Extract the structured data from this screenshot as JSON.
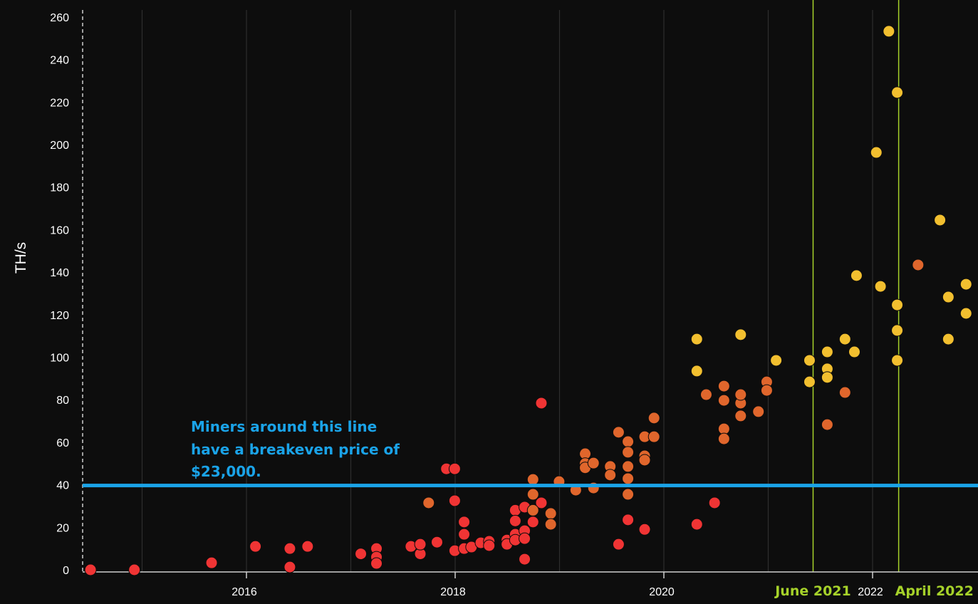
{
  "chart_data": {
    "type": "scatter",
    "title": "",
    "xlabel": "",
    "ylabel": "TH/s",
    "xlim": [
      2014.42,
      2023.0
    ],
    "ylim": [
      0,
      260
    ],
    "yticks": [
      0,
      20,
      40,
      60,
      80,
      100,
      120,
      140,
      160,
      180,
      200,
      220,
      240,
      260
    ],
    "xticks": [
      {
        "value": 2016,
        "label": "2016"
      },
      {
        "value": 2018,
        "label": "2018"
      },
      {
        "value": 2020,
        "label": "2020"
      },
      {
        "value": 2022,
        "label": "2022"
      }
    ],
    "grid": "vertical",
    "reference_line": {
      "y": 40,
      "color": "#1aa3e8",
      "annotation": [
        "Miners around this line",
        "have a breakeven price of",
        "$23,000."
      ]
    },
    "events": [
      {
        "x": 2021.43,
        "label": "June 2021",
        "color": "#a6d22a"
      },
      {
        "x": 2022.25,
        "label": "April 2022",
        "color": "#a6d22a"
      }
    ],
    "series": [
      {
        "name": "red",
        "color": "#f03434",
        "points": [
          [
            2014.54,
            0
          ],
          [
            2014.96,
            0
          ],
          [
            2015.7,
            3.3
          ],
          [
            2016.12,
            11
          ],
          [
            2016.45,
            1.3
          ],
          [
            2016.45,
            10
          ],
          [
            2016.62,
            11
          ],
          [
            2017.13,
            7.5
          ],
          [
            2017.28,
            10
          ],
          [
            2017.28,
            6
          ],
          [
            2017.28,
            3
          ],
          [
            2017.61,
            11
          ],
          [
            2017.7,
            7.5
          ],
          [
            2017.7,
            12
          ],
          [
            2017.86,
            13
          ],
          [
            2017.95,
            47.5
          ],
          [
            2018.03,
            47.5
          ],
          [
            2018.03,
            32.5
          ],
          [
            2018.03,
            9
          ],
          [
            2018.12,
            22.5
          ],
          [
            2018.12,
            16.7
          ],
          [
            2018.12,
            10
          ],
          [
            2018.19,
            10.7
          ],
          [
            2018.28,
            12.7
          ],
          [
            2018.36,
            13.4
          ],
          [
            2018.36,
            11.4
          ],
          [
            2018.53,
            14
          ],
          [
            2018.53,
            12
          ],
          [
            2018.61,
            28
          ],
          [
            2018.61,
            23
          ],
          [
            2018.61,
            16.7
          ],
          [
            2018.61,
            14
          ],
          [
            2018.7,
            29.5
          ],
          [
            2018.7,
            18.4
          ],
          [
            2018.7,
            14.7
          ],
          [
            2018.7,
            5
          ],
          [
            2018.78,
            22.5
          ],
          [
            2018.86,
            31.5
          ],
          [
            2018.86,
            78.4
          ],
          [
            2019.6,
            12
          ],
          [
            2019.69,
            23.5
          ],
          [
            2019.85,
            19
          ],
          [
            2020.35,
            21.4
          ],
          [
            2020.52,
            31.5
          ]
        ]
      },
      {
        "name": "orange",
        "color": "#e0662c",
        "points": [
          [
            2017.78,
            31.5
          ],
          [
            2018.78,
            42.5
          ],
          [
            2018.78,
            35.5
          ],
          [
            2018.78,
            28
          ],
          [
            2018.95,
            26.5
          ],
          [
            2018.95,
            21.4
          ],
          [
            2019.03,
            41.5
          ],
          [
            2019.19,
            37.5
          ],
          [
            2019.28,
            54.6
          ],
          [
            2019.28,
            50
          ],
          [
            2019.28,
            48
          ],
          [
            2019.36,
            50.2
          ],
          [
            2019.36,
            38.5
          ],
          [
            2019.52,
            48.6
          ],
          [
            2019.52,
            44.6
          ],
          [
            2019.6,
            64.7
          ],
          [
            2019.69,
            60.3
          ],
          [
            2019.69,
            55.3
          ],
          [
            2019.69,
            48.6
          ],
          [
            2019.69,
            42.9
          ],
          [
            2019.69,
            35.5
          ],
          [
            2019.85,
            62.6
          ],
          [
            2019.85,
            53.6
          ],
          [
            2019.85,
            51.6
          ],
          [
            2019.94,
            62.6
          ],
          [
            2019.94,
            71.4
          ],
          [
            2020.44,
            82.4
          ],
          [
            2020.61,
            86.4
          ],
          [
            2020.61,
            79.7
          ],
          [
            2020.61,
            66.3
          ],
          [
            2020.61,
            61.6
          ],
          [
            2020.77,
            78.4
          ],
          [
            2020.77,
            82.4
          ],
          [
            2020.77,
            72.4
          ],
          [
            2020.94,
            74.4
          ],
          [
            2021.02,
            88.4
          ],
          [
            2021.02,
            84.4
          ],
          [
            2021.6,
            68.3
          ],
          [
            2021.77,
            83.4
          ],
          [
            2022.47,
            143.4
          ]
        ]
      },
      {
        "name": "yellow",
        "color": "#f2bf2f",
        "points": [
          [
            2020.35,
            108.5
          ],
          [
            2020.35,
            93.5
          ],
          [
            2020.77,
            110.6
          ],
          [
            2021.11,
            98.5
          ],
          [
            2021.43,
            98.5
          ],
          [
            2021.43,
            88.4
          ],
          [
            2021.6,
            102.5
          ],
          [
            2021.6,
            94.5
          ],
          [
            2021.6,
            90.5
          ],
          [
            2021.77,
            108.5
          ],
          [
            2021.86,
            102.5
          ],
          [
            2021.88,
            138.4
          ],
          [
            2022.07,
            196.3
          ],
          [
            2022.11,
            133.3
          ],
          [
            2022.19,
            253.3
          ],
          [
            2022.27,
            224.5
          ],
          [
            2022.27,
            124.6
          ],
          [
            2022.27,
            112.6
          ],
          [
            2022.27,
            98.5
          ],
          [
            2022.68,
            164.5
          ],
          [
            2022.76,
            128.3
          ],
          [
            2022.76,
            108.5
          ],
          [
            2022.93,
            134.3
          ],
          [
            2022.93,
            120.6
          ]
        ]
      }
    ]
  }
}
